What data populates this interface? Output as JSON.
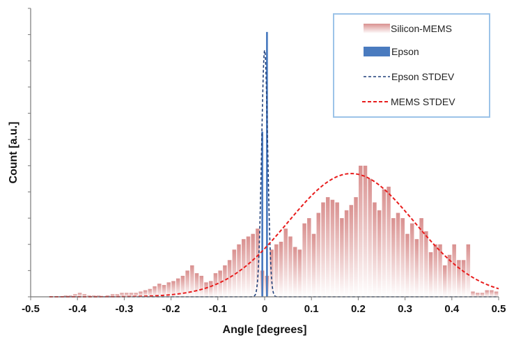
{
  "chart_data": {
    "type": "bar",
    "xlabel": "Angle  [degrees]",
    "ylabel": "Count [a.u.]",
    "xlim": [
      -0.5,
      0.5
    ],
    "x_ticks": [
      "-0.5",
      "-0.4",
      "-0.3",
      "-0.2",
      "-0.1",
      "0",
      "0.1",
      "0.2",
      "0.3",
      "0.4",
      "0.5"
    ],
    "ylim": [
      0,
      110
    ],
    "grid": false,
    "legend_position": "top-right",
    "colors": {
      "silicon_mems": "#d9908f",
      "epson": "#4a7bbf",
      "epson_stdev": "#1f3f7a",
      "mems_stdev": "#e81c1c",
      "legend_border": "#9cc3e8"
    },
    "series": [
      {
        "name": "Silicon-MEMS",
        "kind": "bar",
        "x": [
          -0.485,
          -0.475,
          -0.465,
          -0.455,
          -0.445,
          -0.435,
          -0.425,
          -0.415,
          -0.405,
          -0.395,
          -0.385,
          -0.375,
          -0.365,
          -0.355,
          -0.345,
          -0.335,
          -0.325,
          -0.315,
          -0.305,
          -0.295,
          -0.285,
          -0.275,
          -0.265,
          -0.255,
          -0.245,
          -0.235,
          -0.225,
          -0.215,
          -0.205,
          -0.195,
          -0.185,
          -0.175,
          -0.165,
          -0.155,
          -0.145,
          -0.135,
          -0.125,
          -0.115,
          -0.105,
          -0.095,
          -0.085,
          -0.075,
          -0.065,
          -0.055,
          -0.045,
          -0.035,
          -0.025,
          -0.015,
          -0.005,
          0.005,
          0.015,
          0.025,
          0.035,
          0.045,
          0.055,
          0.065,
          0.075,
          0.085,
          0.095,
          0.105,
          0.115,
          0.125,
          0.135,
          0.145,
          0.155,
          0.165,
          0.175,
          0.185,
          0.195,
          0.205,
          0.215,
          0.225,
          0.235,
          0.245,
          0.255,
          0.265,
          0.275,
          0.285,
          0.295,
          0.305,
          0.315,
          0.325,
          0.335,
          0.345,
          0.355,
          0.365,
          0.375,
          0.385,
          0.395,
          0.405,
          0.415,
          0.425,
          0.435,
          0.445,
          0.455,
          0.465,
          0.475,
          0.485,
          0.495
        ],
        "values": [
          0,
          0,
          0,
          0,
          0,
          0,
          0.5,
          0.5,
          1,
          1.5,
          1,
          0.5,
          0.5,
          0.5,
          0,
          0.5,
          1,
          1,
          1.5,
          1.5,
          1.5,
          1.5,
          2,
          2.5,
          3,
          4,
          5,
          4.5,
          5.5,
          6,
          7,
          8,
          10,
          12,
          9,
          8,
          5.5,
          6,
          9,
          10,
          12,
          14,
          18,
          20,
          22,
          23,
          24,
          26,
          10,
          8,
          18,
          20,
          21,
          26,
          23,
          19,
          18,
          28,
          30,
          24,
          32,
          36,
          38,
          37,
          36,
          30,
          33,
          35,
          38,
          50,
          50,
          45,
          36,
          33,
          41,
          42,
          30,
          32,
          30,
          24,
          28,
          22,
          30,
          25,
          17,
          20,
          20,
          12,
          16,
          20,
          14,
          14,
          20,
          2,
          1.5,
          1.5,
          2.5,
          2.5,
          2
        ]
      },
      {
        "name": "Epson",
        "kind": "bar",
        "x": [
          -0.005,
          0.005
        ],
        "values": [
          63,
          101
        ]
      },
      {
        "name": "Epson STDEV",
        "kind": "line",
        "style": "dashed",
        "gaussian": {
          "mean": 0.0,
          "sd": 0.0065,
          "peak": 94
        }
      },
      {
        "name": "MEMS STDEV",
        "kind": "line",
        "style": "dashed",
        "gaussian": {
          "mean": 0.185,
          "sd": 0.135,
          "peak": 47
        }
      }
    ]
  }
}
